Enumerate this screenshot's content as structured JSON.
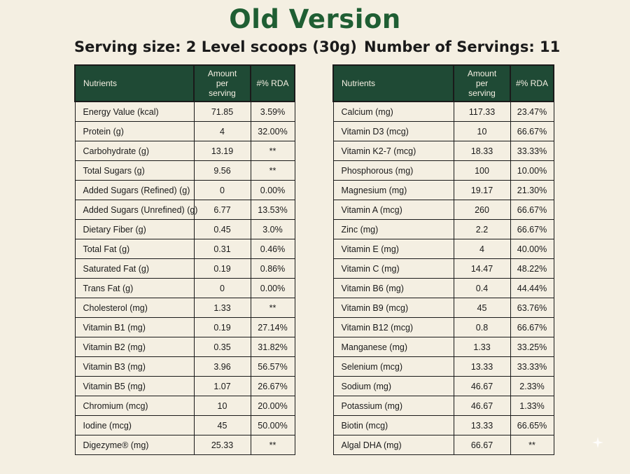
{
  "title": "Old Version",
  "serving_size": "Serving size: 2 Level scoops (30g)",
  "servings_count": "Number of Servings: 11",
  "table_headers": {
    "nutrients": "Nutrients",
    "amount_line1": "Amount",
    "amount_line2": "per",
    "amount_line3": "serving",
    "rda": "#% RDA"
  },
  "left_rows": [
    {
      "nutrient": "Energy Value (kcal)",
      "amount": "71.85",
      "rda": "3.59%"
    },
    {
      "nutrient": "Protein (g)",
      "amount": "4",
      "rda": "32.00%"
    },
    {
      "nutrient": "Carbohydrate (g)",
      "amount": "13.19",
      "rda": "**"
    },
    {
      "nutrient": "Total Sugars (g)",
      "amount": "9.56",
      "rda": "**"
    },
    {
      "nutrient": "Added Sugars (Refined) (g)",
      "amount": "0",
      "rda": "0.00%"
    },
    {
      "nutrient": "Added Sugars (Unrefined) (g)",
      "amount": "6.77",
      "rda": "13.53%"
    },
    {
      "nutrient": "Dietary Fiber (g)",
      "amount": "0.45",
      "rda": "3.0%"
    },
    {
      "nutrient": "Total Fat (g)",
      "amount": "0.31",
      "rda": "0.46%"
    },
    {
      "nutrient": "Saturated Fat (g)",
      "amount": "0.19",
      "rda": "0.86%"
    },
    {
      "nutrient": "Trans Fat (g)",
      "amount": "0",
      "rda": "0.00%"
    },
    {
      "nutrient": "Cholesterol (mg)",
      "amount": "1.33",
      "rda": "**"
    },
    {
      "nutrient": "Vitamin B1 (mg)",
      "amount": "0.19",
      "rda": "27.14%"
    },
    {
      "nutrient": "Vitamin B2 (mg)",
      "amount": "0.35",
      "rda": "31.82%"
    },
    {
      "nutrient": "Vitamin B3 (mg)",
      "amount": "3.96",
      "rda": "56.57%"
    },
    {
      "nutrient": "Vitamin B5 (mg)",
      "amount": "1.07",
      "rda": "26.67%"
    },
    {
      "nutrient": "Chromium (mcg)",
      "amount": "10",
      "rda": "20.00%"
    },
    {
      "nutrient": "Iodine (mcg)",
      "amount": "45",
      "rda": "50.00%"
    },
    {
      "nutrient": "Digezyme® (mg)",
      "amount": "25.33",
      "rda": "**"
    }
  ],
  "right_rows": [
    {
      "nutrient": "Calcium (mg)",
      "amount": "117.33",
      "rda": "23.47%"
    },
    {
      "nutrient": "Vitamin D3 (mcg)",
      "amount": "10",
      "rda": "66.67%"
    },
    {
      "nutrient": "Vitamin K2-7 (mcg)",
      "amount": "18.33",
      "rda": "33.33%"
    },
    {
      "nutrient": "Phosphorous (mg)",
      "amount": "100",
      "rda": "10.00%"
    },
    {
      "nutrient": "Magnesium (mg)",
      "amount": "19.17",
      "rda": "21.30%"
    },
    {
      "nutrient": "Vitamin A (mcg)",
      "amount": "260",
      "rda": "66.67%"
    },
    {
      "nutrient": "Zinc (mg)",
      "amount": "2.2",
      "rda": "66.67%"
    },
    {
      "nutrient": "Vitamin E (mg)",
      "amount": "4",
      "rda": "40.00%"
    },
    {
      "nutrient": "Vitamin C (mg)",
      "amount": "14.47",
      "rda": "48.22%"
    },
    {
      "nutrient": "Vitamin B6 (mg)",
      "amount": "0.4",
      "rda": "44.44%"
    },
    {
      "nutrient": "Vitamin B9 (mcg)",
      "amount": "45",
      "rda": "63.76%"
    },
    {
      "nutrient": "Vitamin B12 (mcg)",
      "amount": "0.8",
      "rda": "66.67%"
    },
    {
      "nutrient": "Manganese (mg)",
      "amount": "1.33",
      "rda": "33.25%"
    },
    {
      "nutrient": "Selenium (mcg)",
      "amount": "13.33",
      "rda": "33.33%"
    },
    {
      "nutrient": "Sodium (mg)",
      "amount": "46.67",
      "rda": "2.33%"
    },
    {
      "nutrient": "Potassium (mg)",
      "amount": "46.67",
      "rda": "1.33%"
    },
    {
      "nutrient": "Biotin (mcg)",
      "amount": "13.33",
      "rda": "66.65%"
    },
    {
      "nutrient": "Algal DHA (mg)",
      "amount": "66.67",
      "rda": "**"
    }
  ],
  "colors": {
    "background": "#f4efe2",
    "title_green": "#1f5e33",
    "header_green": "#1f4a35"
  },
  "icons": {
    "corner": "sparkle-icon"
  }
}
